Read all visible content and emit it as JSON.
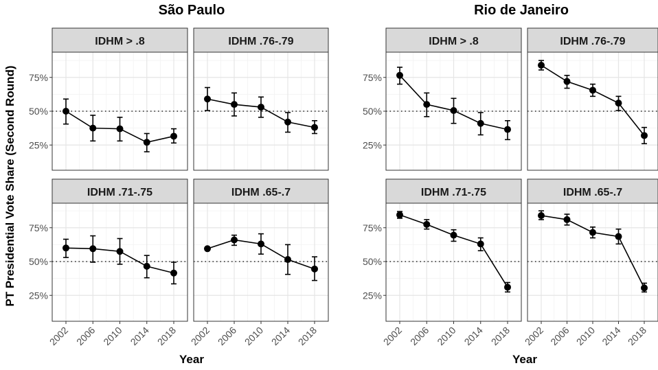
{
  "figure": {
    "ylabel": "PT Presidential Vote Share (Second Round)",
    "xlabel": "Year"
  },
  "chart_data": [
    {
      "type": "line",
      "region": "São Paulo",
      "panel": "IDHM > .8",
      "x": [
        2002,
        2006,
        2010,
        2014,
        2018
      ],
      "y": [
        0.5,
        0.375,
        0.37,
        0.27,
        0.315
      ],
      "y_err_low": [
        0.405,
        0.28,
        0.28,
        0.2,
        0.265
      ],
      "y_err_high": [
        0.59,
        0.47,
        0.455,
        0.335,
        0.37
      ],
      "yticks": [
        "25%",
        "50%",
        "75%"
      ],
      "ylim": [
        0.0,
        1.0
      ],
      "reference_line": 0.5
    },
    {
      "type": "line",
      "region": "São Paulo",
      "panel": "IDHM .76-.79",
      "x": [
        2002,
        2006,
        2010,
        2014,
        2018
      ],
      "y": [
        0.59,
        0.55,
        0.53,
        0.42,
        0.38
      ],
      "y_err_low": [
        0.505,
        0.465,
        0.455,
        0.345,
        0.335
      ],
      "y_err_high": [
        0.675,
        0.635,
        0.605,
        0.49,
        0.43
      ],
      "yticks": [
        "25%",
        "50%",
        "75%"
      ],
      "ylim": [
        0.0,
        1.0
      ],
      "reference_line": 0.5
    },
    {
      "type": "line",
      "region": "São Paulo",
      "panel": "IDHM .71-.75",
      "x": [
        2002,
        2006,
        2010,
        2014,
        2018
      ],
      "y": [
        0.6,
        0.595,
        0.575,
        0.465,
        0.415
      ],
      "y_err_low": [
        0.53,
        0.495,
        0.48,
        0.38,
        0.335
      ],
      "y_err_high": [
        0.665,
        0.69,
        0.67,
        0.545,
        0.495
      ],
      "yticks": [
        "25%",
        "50%",
        "75%"
      ],
      "ylim": [
        0.0,
        1.0
      ],
      "reference_line": 0.5
    },
    {
      "type": "line",
      "region": "São Paulo",
      "panel": "IDHM .65-.7",
      "x": [
        2002,
        2006,
        2010,
        2014,
        2018
      ],
      "y": [
        0.595,
        0.66,
        0.63,
        0.515,
        0.445
      ],
      "y_err_low": [
        0.59,
        0.62,
        0.555,
        0.405,
        0.36
      ],
      "y_err_high": [
        0.6,
        0.695,
        0.705,
        0.625,
        0.535
      ],
      "yticks": [
        "25%",
        "50%",
        "75%"
      ],
      "ylim": [
        0.0,
        1.0
      ],
      "reference_line": 0.5
    },
    {
      "type": "line",
      "region": "Rio de Janeiro",
      "panel": "IDHM > .8",
      "x": [
        2002,
        2006,
        2010,
        2014,
        2018
      ],
      "y": [
        0.765,
        0.55,
        0.505,
        0.41,
        0.365
      ],
      "y_err_low": [
        0.7,
        0.46,
        0.41,
        0.325,
        0.29
      ],
      "y_err_high": [
        0.825,
        0.635,
        0.595,
        0.49,
        0.43
      ],
      "yticks": [
        "25%",
        "50%",
        "75%"
      ],
      "ylim": [
        0.0,
        1.0
      ],
      "reference_line": 0.5
    },
    {
      "type": "line",
      "region": "Rio de Janeiro",
      "panel": "IDHM .76-.79",
      "x": [
        2002,
        2006,
        2010,
        2014,
        2018
      ],
      "y": [
        0.84,
        0.72,
        0.655,
        0.56,
        0.32
      ],
      "y_err_low": [
        0.805,
        0.67,
        0.61,
        0.505,
        0.26
      ],
      "y_err_high": [
        0.875,
        0.765,
        0.7,
        0.61,
        0.38
      ],
      "yticks": [
        "25%",
        "50%",
        "75%"
      ],
      "ylim": [
        0.0,
        1.0
      ],
      "reference_line": 0.5
    },
    {
      "type": "line",
      "region": "Rio de Janeiro",
      "panel": "IDHM .71-.75",
      "x": [
        2002,
        2006,
        2010,
        2014,
        2018
      ],
      "y": [
        0.845,
        0.775,
        0.695,
        0.63,
        0.31
      ],
      "y_err_low": [
        0.82,
        0.74,
        0.65,
        0.58,
        0.275
      ],
      "y_err_high": [
        0.87,
        0.81,
        0.735,
        0.675,
        0.345
      ],
      "yticks": [
        "25%",
        "50%",
        "75%"
      ],
      "ylim": [
        0.0,
        1.0
      ],
      "reference_line": 0.5
    },
    {
      "type": "line",
      "region": "Rio de Janeiro",
      "panel": "IDHM .65-.7",
      "x": [
        2002,
        2006,
        2010,
        2014,
        2018
      ],
      "y": [
        0.84,
        0.81,
        0.715,
        0.685,
        0.305
      ],
      "y_err_low": [
        0.81,
        0.77,
        0.675,
        0.63,
        0.275
      ],
      "y_err_high": [
        0.875,
        0.85,
        0.755,
        0.74,
        0.34
      ],
      "yticks": [
        "25%",
        "50%",
        "75%"
      ],
      "ylim": [
        0.0,
        1.0
      ],
      "reference_line": 0.5
    }
  ]
}
